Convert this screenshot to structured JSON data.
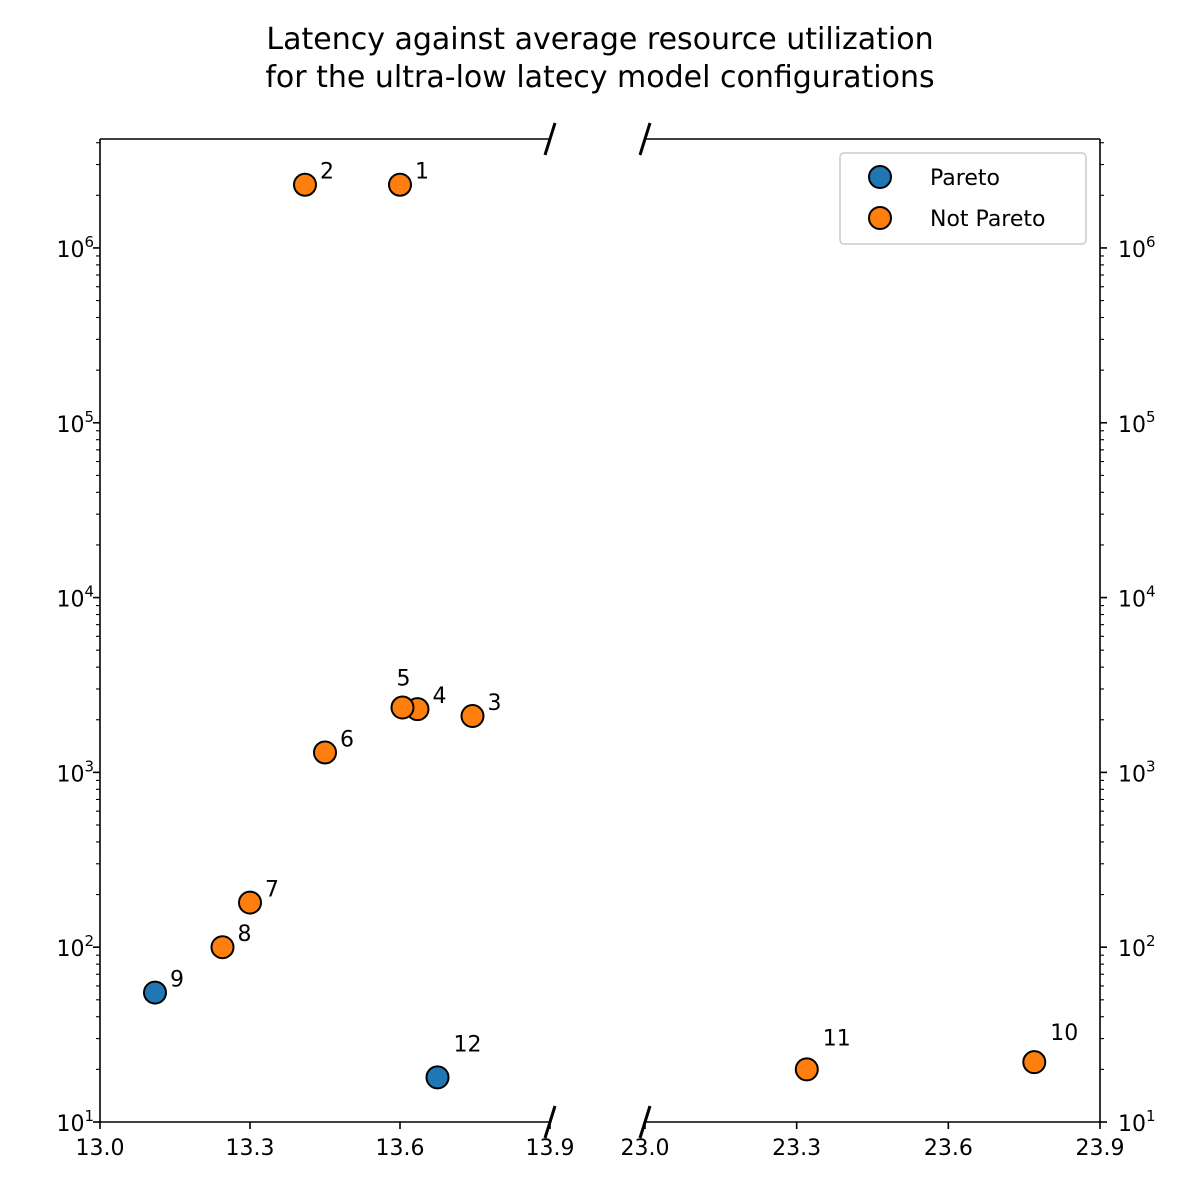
{
  "chart_data": {
    "type": "scatter",
    "title_lines": [
      "Latency against average resource utilization",
      "for the ultra-low latecy model configurations"
    ],
    "xlabel": "",
    "ylabel": "",
    "y_scale": "log",
    "ylim": [
      10,
      4200000
    ],
    "broken_x_axis": true,
    "panels": [
      {
        "xlim": [
          13.0,
          13.9
        ],
        "xticks": [
          "13.0",
          "13.3",
          "13.6",
          "13.9"
        ],
        "tick_values": [
          13.0,
          13.3,
          13.6,
          13.9
        ]
      },
      {
        "xlim": [
          23.0,
          23.9
        ],
        "xticks": [
          "23.0",
          "23.3",
          "23.6",
          "23.9"
        ],
        "tick_values": [
          23.0,
          23.3,
          23.6,
          23.9
        ]
      }
    ],
    "yticks": [
      {
        "value": 10,
        "base": "10",
        "exp": "1"
      },
      {
        "value": 100,
        "base": "10",
        "exp": "2"
      },
      {
        "value": 1000,
        "base": "10",
        "exp": "3"
      },
      {
        "value": 10000,
        "base": "10",
        "exp": "4"
      },
      {
        "value": 100000,
        "base": "10",
        "exp": "5"
      },
      {
        "value": 1000000,
        "base": "10",
        "exp": "6"
      }
    ],
    "series": [
      {
        "name": "Pareto",
        "color": "#1f77b4",
        "points": [
          {
            "label": "9",
            "x": 13.11,
            "y": 55
          },
          {
            "label": "12",
            "x": 13.675,
            "y": 18
          }
        ]
      },
      {
        "name": "Not Pareto",
        "color": "#ff7f0e",
        "points": [
          {
            "label": "1",
            "x": 13.6,
            "y": 2300000
          },
          {
            "label": "2",
            "x": 13.41,
            "y": 2300000
          },
          {
            "label": "3",
            "x": 13.745,
            "y": 2100
          },
          {
            "label": "4",
            "x": 13.635,
            "y": 2300
          },
          {
            "label": "5",
            "x": 13.605,
            "y": 2350
          },
          {
            "label": "6",
            "x": 13.45,
            "y": 1300
          },
          {
            "label": "7",
            "x": 13.3,
            "y": 180
          },
          {
            "label": "8",
            "x": 13.245,
            "y": 100
          },
          {
            "label": "10",
            "x": 23.77,
            "y": 22
          },
          {
            "label": "11",
            "x": 23.32,
            "y": 20
          }
        ]
      }
    ],
    "legend": {
      "placement": "top-right",
      "entries": [
        "Pareto",
        "Not Pareto"
      ]
    },
    "grid": false
  }
}
